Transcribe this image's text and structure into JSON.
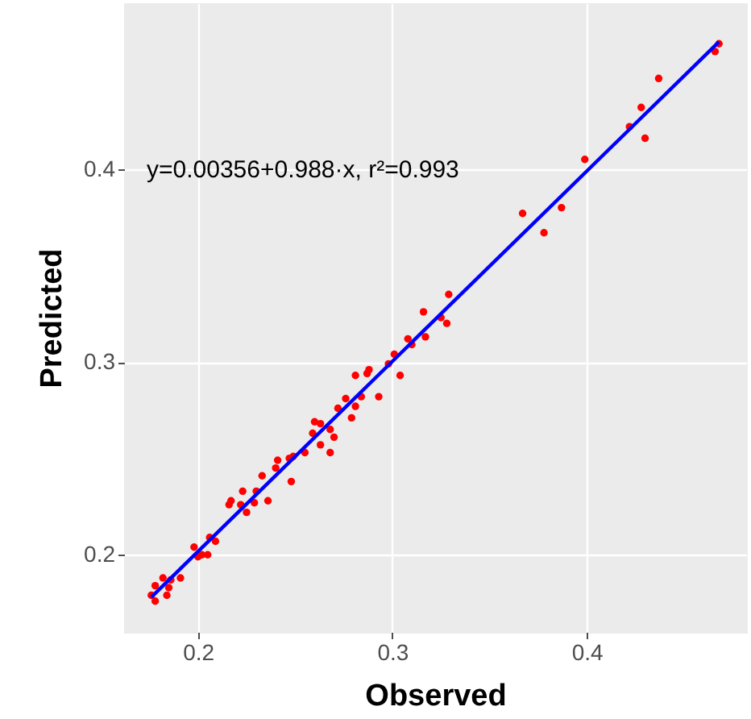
{
  "chart_data": {
    "type": "scatter",
    "xlabel": "Observed",
    "ylabel": "Predicted",
    "xlim": [
      0.162,
      0.482
    ],
    "ylim": [
      0.16,
      0.486
    ],
    "xticks": [
      0.2,
      0.3,
      0.4
    ],
    "yticks": [
      0.2,
      0.3,
      0.4
    ],
    "grid": true,
    "marker": "circle",
    "annotations": [
      "y=0.00356+0.988·x, r²=0.993"
    ],
    "series": [
      {
        "color": "#ff0000",
        "x": [
          0.176,
          0.178,
          0.178,
          0.182,
          0.184,
          0.185,
          0.186,
          0.191,
          0.198,
          0.2,
          0.202,
          0.205,
          0.206,
          0.209,
          0.216,
          0.217,
          0.222,
          0.223,
          0.225,
          0.229,
          0.23,
          0.233,
          0.236,
          0.24,
          0.241,
          0.247,
          0.248,
          0.249,
          0.255,
          0.259,
          0.26,
          0.263,
          0.263,
          0.268,
          0.268,
          0.27,
          0.272,
          0.276,
          0.279,
          0.281,
          0.281,
          0.284,
          0.287,
          0.288,
          0.293,
          0.298,
          0.301,
          0.304,
          0.308,
          0.31,
          0.316,
          0.317,
          0.325,
          0.328,
          0.329,
          0.367,
          0.378,
          0.387,
          0.399,
          0.422,
          0.428,
          0.43,
          0.437,
          0.466,
          0.468
        ],
        "values": [
          0.179,
          0.184,
          0.176,
          0.188,
          0.179,
          0.183,
          0.187,
          0.188,
          0.204,
          0.199,
          0.2,
          0.2,
          0.209,
          0.207,
          0.226,
          0.228,
          0.226,
          0.233,
          0.222,
          0.227,
          0.233,
          0.241,
          0.228,
          0.245,
          0.249,
          0.25,
          0.238,
          0.251,
          0.253,
          0.263,
          0.269,
          0.268,
          0.257,
          0.253,
          0.265,
          0.261,
          0.276,
          0.281,
          0.271,
          0.293,
          0.277,
          0.282,
          0.294,
          0.296,
          0.282,
          0.299,
          0.304,
          0.293,
          0.312,
          0.309,
          0.326,
          0.313,
          0.323,
          0.32,
          0.335,
          0.377,
          0.367,
          0.38,
          0.405,
          0.422,
          0.432,
          0.416,
          0.447,
          0.461,
          0.465
        ]
      },
      {
        "type": "line",
        "marker": "none",
        "color": "#0000ff",
        "x": [
          0.176,
          0.468
        ],
        "values": [
          0.178,
          0.466
        ]
      }
    ]
  }
}
